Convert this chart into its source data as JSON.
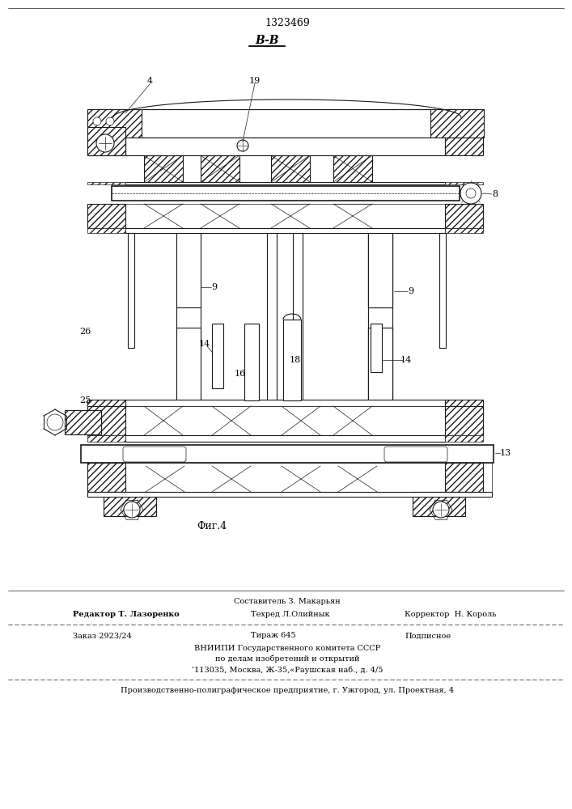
{
  "patent_number": "1323469",
  "section_label": "B-B",
  "fig_label": "Фиг.4",
  "bg_color": "#ffffff",
  "line_color": "#1a1a1a",
  "footer_line1_center": "Составитель З. Макарьян",
  "footer_line2_left": "Редактор Т. Лазоренко",
  "footer_line2_center": "Техред Л.Олийнык",
  "footer_line2_right": "Корректор  Н. Король",
  "footer_line3_left": "Заказ 2923/24",
  "footer_line3_center": "Тираж 645",
  "footer_line3_right": "Подписное",
  "footer_line4": "ВНИИПИ Государственного комитета СССР",
  "footer_line5": "по делам изобретений и открытий",
  "footer_line6": "’113035, Москва, Ж-35,«Раушская наб., д. 4/5",
  "footer_line7": "Производственно-полиграфическое предприятие, г. Ужгород, ул. Проектная, 4"
}
